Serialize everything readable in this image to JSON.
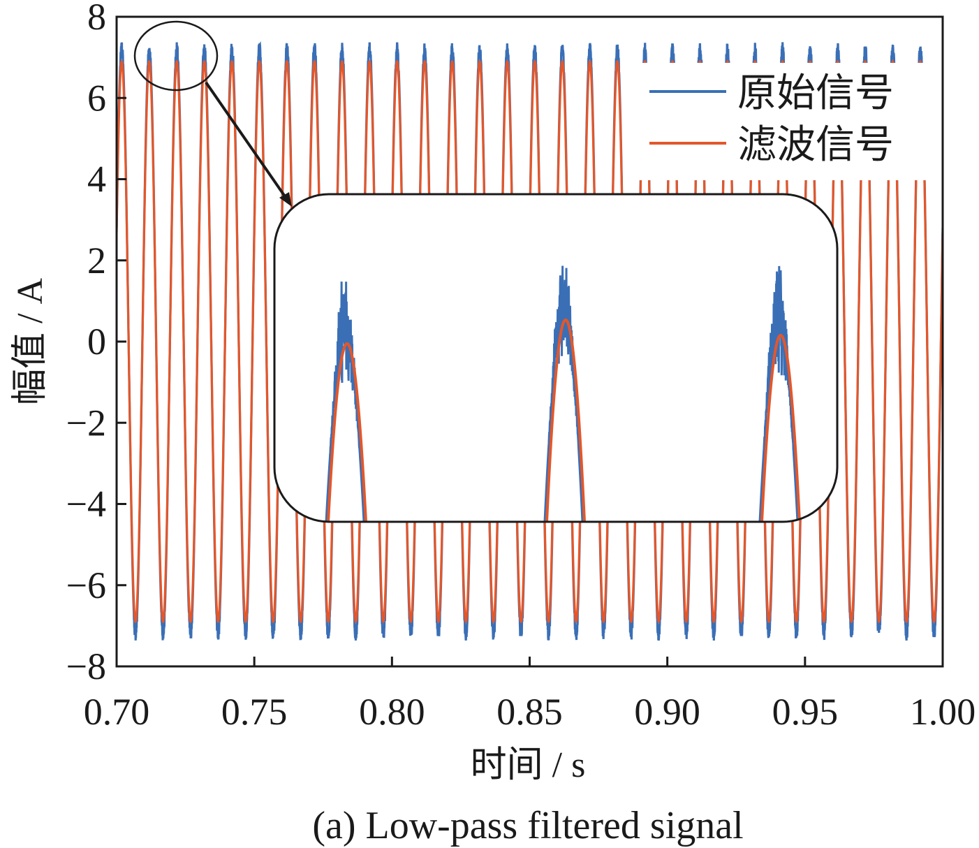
{
  "chart_data": {
    "type": "line",
    "caption": "(a) Low-pass filtered signal",
    "xlabel": "时间 / s",
    "ylabel": "幅值 / A",
    "xlim": [
      0.7,
      1.0
    ],
    "ylim": [
      -8,
      8
    ],
    "x_ticks": [
      "0.70",
      "0.75",
      "0.80",
      "0.85",
      "0.90",
      "0.95",
      "1.00"
    ],
    "x_tick_values": [
      0.7,
      0.75,
      0.8,
      0.85,
      0.9,
      0.95,
      1.0
    ],
    "y_ticks": [
      "8",
      "6",
      "4",
      "2",
      "0",
      "−2",
      "−4",
      "−6",
      "−8"
    ],
    "y_tick_values": [
      8,
      6,
      4,
      2,
      0,
      -2,
      -4,
      -6,
      -8
    ],
    "legend_position": "top-right",
    "grid": false,
    "signal": {
      "frequency_hz": 100,
      "period_s": 0.01
    },
    "series": [
      {
        "name": "原始信号",
        "color": "#3a6fb6",
        "amplitude": 7.2,
        "noise": "high-frequency noise at peaks"
      },
      {
        "name": "滤波信号",
        "color": "#e2572b",
        "amplitude": 6.9
      }
    ],
    "annotations": {
      "zoom_circle_target": "peaks near 0.71–0.73 s",
      "inset": "magnified view of three peaks"
    }
  }
}
